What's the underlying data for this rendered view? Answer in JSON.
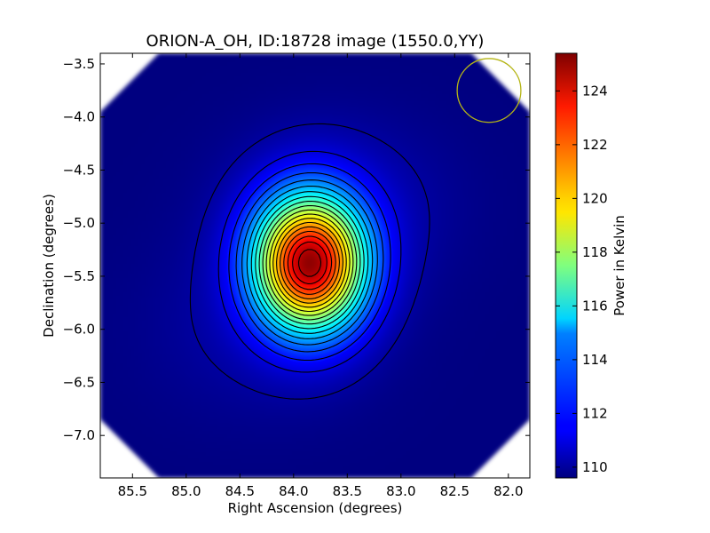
{
  "chart_data": {
    "type": "heatmap",
    "title": "ORION-A_OH, ID:18728 image (1550.0,YY)",
    "xlabel": "Right Ascension (degrees)",
    "ylabel": "Declination (degrees)",
    "xlim": [
      85.8,
      81.8
    ],
    "ylim": [
      -7.4,
      -3.4
    ],
    "x_ticks": [
      {
        "value": 85.5,
        "label": "85.5"
      },
      {
        "value": 85.0,
        "label": "85.0"
      },
      {
        "value": 84.5,
        "label": "84.5"
      },
      {
        "value": 84.0,
        "label": "84.0"
      },
      {
        "value": 83.5,
        "label": "83.5"
      },
      {
        "value": 83.0,
        "label": "83.0"
      },
      {
        "value": 82.5,
        "label": "82.5"
      },
      {
        "value": 82.0,
        "label": "82.0"
      }
    ],
    "y_ticks": [
      {
        "value": -3.5,
        "label": "−3.5"
      },
      {
        "value": -4.0,
        "label": "−4.0"
      },
      {
        "value": -4.5,
        "label": "−4.5"
      },
      {
        "value": -5.0,
        "label": "−5.0"
      },
      {
        "value": -5.5,
        "label": "−5.5"
      },
      {
        "value": -6.0,
        "label": "−6.0"
      },
      {
        "value": -6.5,
        "label": "−6.5"
      },
      {
        "value": -7.0,
        "label": "−7.0"
      }
    ],
    "peak": {
      "ra": 83.85,
      "dec": -5.38,
      "value": 125.4
    },
    "background_value": 109.6,
    "beam": {
      "ra": 82.18,
      "dec": -3.75,
      "radius_deg": 0.3,
      "color": "#b5b515"
    },
    "contour_levels": [
      110.1,
      111.0,
      111.8,
      112.6,
      113.4,
      114.2,
      115.0,
      115.8,
      116.6,
      117.4,
      118.2,
      119.0,
      119.8,
      120.6,
      121.4,
      122.2,
      123.0,
      123.8,
      124.6,
      125.2
    ],
    "colorbar": {
      "label": "Power in Kelvin",
      "min": 109.6,
      "max": 125.4,
      "ticks": [
        {
          "value": 110,
          "label": "110"
        },
        {
          "value": 112,
          "label": "112"
        },
        {
          "value": 114,
          "label": "114"
        },
        {
          "value": 116,
          "label": "116"
        },
        {
          "value": 118,
          "label": "118"
        },
        {
          "value": 120,
          "label": "120"
        },
        {
          "value": 122,
          "label": "122"
        },
        {
          "value": 124,
          "label": "124"
        }
      ],
      "colormap": "jet"
    },
    "grid": false,
    "masked_corners": true
  }
}
